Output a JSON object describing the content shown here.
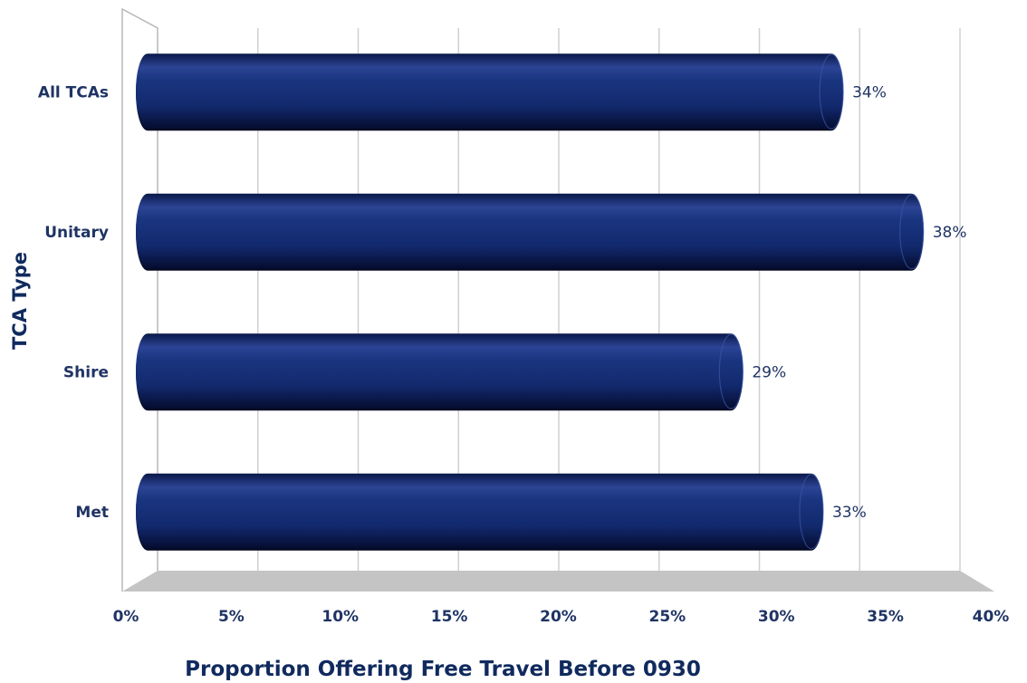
{
  "chart_data": {
    "type": "bar",
    "orientation": "horizontal",
    "categories": [
      "All TCAs",
      "Unitary",
      "Shire",
      "Met"
    ],
    "values": [
      34,
      38,
      29,
      33
    ],
    "value_labels": [
      "34%",
      "38%",
      "29%",
      "33%"
    ],
    "xlabel": "Proportion Offering Free Travel Before 0930",
    "ylabel": "TCA Type",
    "xlim": [
      0,
      40
    ],
    "xticks": [
      0,
      5,
      10,
      15,
      20,
      25,
      30,
      35,
      40
    ],
    "xtick_labels": [
      "0%",
      "5%",
      "10%",
      "15%",
      "20%",
      "25%",
      "30%",
      "35%",
      "40%"
    ],
    "grid": true,
    "legend": "none",
    "bar_color": "#14286b",
    "floor_color": "#c4c4c4"
  }
}
